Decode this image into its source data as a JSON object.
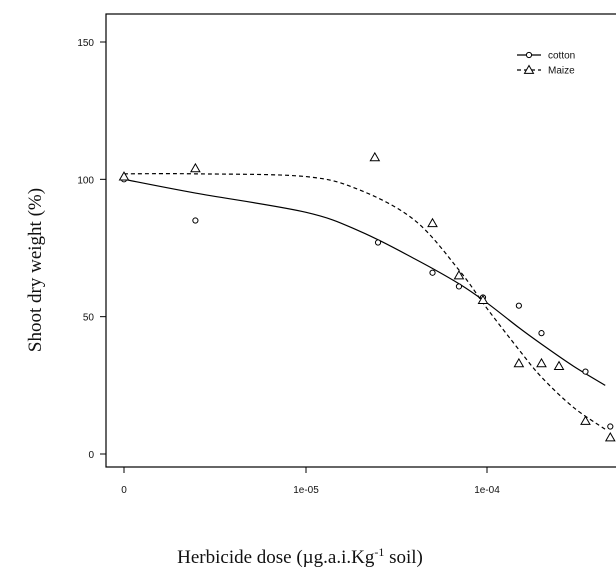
{
  "chart_data": {
    "type": "scatter",
    "title": "",
    "xlabel": "Herbicide dose (µg.a.i.Kg",
    "xlabel_sup": "-1",
    "xlabel_tail": " soil)",
    "ylabel": "Shoot dry weight (%)",
    "x_scale": "log",
    "ylim": [
      0,
      150
    ],
    "xlim": [
      0,
      0.0005
    ],
    "x_ticks": [
      {
        "value": 0,
        "label": "0"
      },
      {
        "value": 1e-05,
        "label": "1e-05"
      },
      {
        "value": 0.0001,
        "label": "1e-04"
      }
    ],
    "y_ticks": [
      {
        "value": 0,
        "label": "0"
      },
      {
        "value": 50,
        "label": "50"
      },
      {
        "value": 100,
        "label": "100"
      },
      {
        "value": 150,
        "label": "150"
      }
    ],
    "legend_position": "top-right",
    "grid": false,
    "series": [
      {
        "name": "cotton",
        "marker": "circle",
        "line_style": "solid",
        "points": [
          {
            "x": 0,
            "y": 100
          },
          {
            "x": 3e-06,
            "y": 85
          },
          {
            "x": 2.5e-05,
            "y": 77
          },
          {
            "x": 5e-05,
            "y": 66
          },
          {
            "x": 7e-05,
            "y": 61
          },
          {
            "x": 9.5e-05,
            "y": 57
          },
          {
            "x": 0.00015,
            "y": 54
          },
          {
            "x": 0.0002,
            "y": 44
          },
          {
            "x": 0.00035,
            "y": 30
          },
          {
            "x": 0.00048,
            "y": 10
          }
        ],
        "fit": [
          {
            "x": 0,
            "y": 100
          },
          {
            "x": 3e-06,
            "y": 95
          },
          {
            "x": 1e-05,
            "y": 88
          },
          {
            "x": 2e-05,
            "y": 81
          },
          {
            "x": 4e-05,
            "y": 71
          },
          {
            "x": 7e-05,
            "y": 62
          },
          {
            "x": 0.0001,
            "y": 55
          },
          {
            "x": 0.00015,
            "y": 46
          },
          {
            "x": 0.0002,
            "y": 40
          },
          {
            "x": 0.0003,
            "y": 32
          },
          {
            "x": 0.00045,
            "y": 25
          }
        ]
      },
      {
        "name": "Maize",
        "marker": "triangle",
        "line_style": "dashed",
        "points": [
          {
            "x": 0,
            "y": 101
          },
          {
            "x": 3e-06,
            "y": 104
          },
          {
            "x": 2.4e-05,
            "y": 108
          },
          {
            "x": 5e-05,
            "y": 84
          },
          {
            "x": 7e-05,
            "y": 65
          },
          {
            "x": 9.5e-05,
            "y": 56
          },
          {
            "x": 0.00015,
            "y": 33
          },
          {
            "x": 0.0002,
            "y": 33
          },
          {
            "x": 0.00025,
            "y": 32
          },
          {
            "x": 0.00035,
            "y": 12
          },
          {
            "x": 0.00048,
            "y": 6
          }
        ],
        "fit": [
          {
            "x": 0,
            "y": 102
          },
          {
            "x": 3e-06,
            "y": 102
          },
          {
            "x": 1e-05,
            "y": 101
          },
          {
            "x": 2e-05,
            "y": 96
          },
          {
            "x": 4e-05,
            "y": 85
          },
          {
            "x": 7e-05,
            "y": 67
          },
          {
            "x": 0.0001,
            "y": 53
          },
          {
            "x": 0.00015,
            "y": 38
          },
          {
            "x": 0.0002,
            "y": 28
          },
          {
            "x": 0.0003,
            "y": 17
          },
          {
            "x": 0.00045,
            "y": 9
          }
        ]
      }
    ]
  }
}
